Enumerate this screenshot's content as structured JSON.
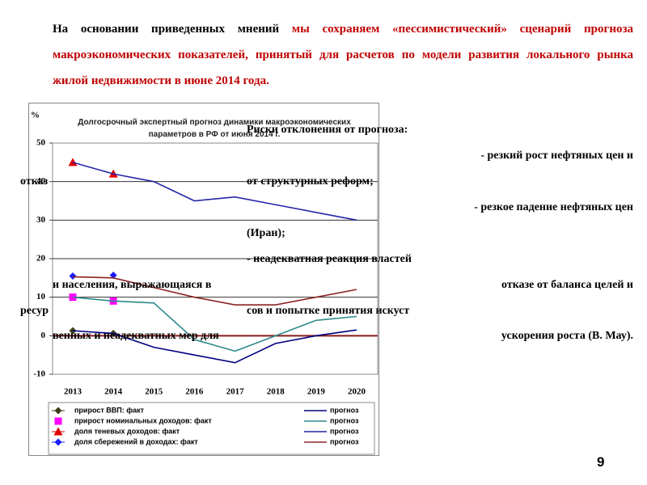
{
  "header": {
    "intro": "На основании приведенных мнений",
    "highlight": "мы сохраняем «пессимистический» сценарий прогноза макроэкономических показателей, принятый для расчетов по модели развития локального рынка жилой недвижимости в июне 2014 года."
  },
  "chart_data": {
    "type": "line",
    "title": "Долгосрочный экспертный прогноз динамики макроэкономических параметров в РФ от июня 2014 г.",
    "y_label": "%",
    "categories": [
      "2013",
      "2014",
      "2015",
      "2016",
      "2017",
      "2018",
      "2019",
      "2020"
    ],
    "ylim": [
      -10,
      50
    ],
    "yticks": [
      -10,
      0,
      10,
      20,
      30,
      40,
      50
    ],
    "grid": true,
    "series": [
      {
        "name": "прирост ВВП: факт",
        "color": "#3c3c14",
        "marker": "diamond",
        "values": [
          1.3,
          0.6,
          null,
          null,
          null,
          null,
          null,
          null
        ]
      },
      {
        "name": "прогноз",
        "color": "#000080",
        "values": [
          1.3,
          0.6,
          -3,
          -5,
          -7,
          -2,
          0,
          1.5
        ]
      },
      {
        "name": "прирост номинальных доходов: факт",
        "color": "#ff00ff",
        "marker": "square",
        "values": [
          10,
          9,
          null,
          null,
          null,
          null,
          null,
          null
        ]
      },
      {
        "name": "прогноз",
        "color": "#2e8b8b",
        "values": [
          10,
          9,
          8.5,
          -1,
          -4,
          0,
          4,
          5
        ]
      },
      {
        "name": "доля теневых доходов: факт",
        "color": "#e00000",
        "marker": "triangle",
        "values": [
          45,
          42,
          null,
          null,
          null,
          null,
          null,
          null
        ]
      },
      {
        "name": "прогноз",
        "color": "#2626a8",
        "values": [
          45,
          42,
          40,
          35,
          36,
          34,
          32,
          30
        ]
      },
      {
        "name": "доля сбережений в доходах: факт",
        "color": "#1a1aff",
        "marker": "diamond",
        "values": [
          15.5,
          15.7,
          null,
          null,
          null,
          null,
          null,
          null
        ]
      },
      {
        "name": "прогноз",
        "color": "#8b2323",
        "values": [
          15.3,
          15,
          12.5,
          10,
          8,
          8,
          10,
          12
        ]
      }
    ]
  },
  "overlay": [
    "Риски отклонения от прогноза:",
    "- резкий рост нефтяных цен и",
    "отказ",
    "от структурных реформ;",
    "- резкое падение нефтяных цен",
    "(Иран);",
    "- неадекватная реакция властей",
    "и населения, выражающаяся в",
    "отказе от баланса целей и",
    "ресур",
    "сов и попытке принятия искуст",
    "венных и неадекватных мер для",
    "ускорения роста (В. Мау)."
  ],
  "page_number": "9"
}
